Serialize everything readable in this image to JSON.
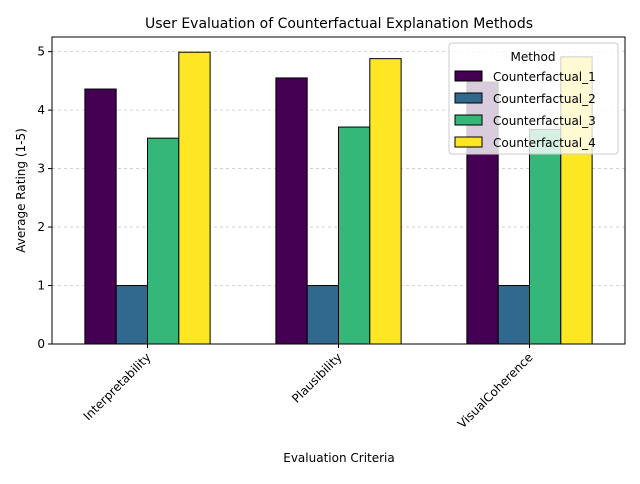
{
  "chart_data": {
    "type": "bar",
    "title": "User Evaluation of Counterfactual Explanation Methods",
    "xlabel": "Evaluation Criteria",
    "ylabel": "Average Rating (1-5)",
    "categories": [
      "Interpretability",
      "Plausibility",
      "VisualCoherence"
    ],
    "ylim": [
      0,
      5.25
    ],
    "yticks": [
      0,
      1,
      2,
      3,
      4,
      5
    ],
    "grid": "y-dashed",
    "legend": {
      "title": "Method",
      "placement": "top-right"
    },
    "series": [
      {
        "name": "Counterfactual_1",
        "color": "#440154",
        "values": [
          4.36,
          4.55,
          4.48
        ]
      },
      {
        "name": "Counterfactual_2",
        "color": "#31688e",
        "values": [
          1.0,
          1.0,
          1.0
        ]
      },
      {
        "name": "Counterfactual_3",
        "color": "#35b779",
        "values": [
          3.52,
          3.71,
          3.67
        ]
      },
      {
        "name": "Counterfactual_4",
        "color": "#fde725",
        "values": [
          4.99,
          4.88,
          4.91
        ]
      }
    ]
  }
}
